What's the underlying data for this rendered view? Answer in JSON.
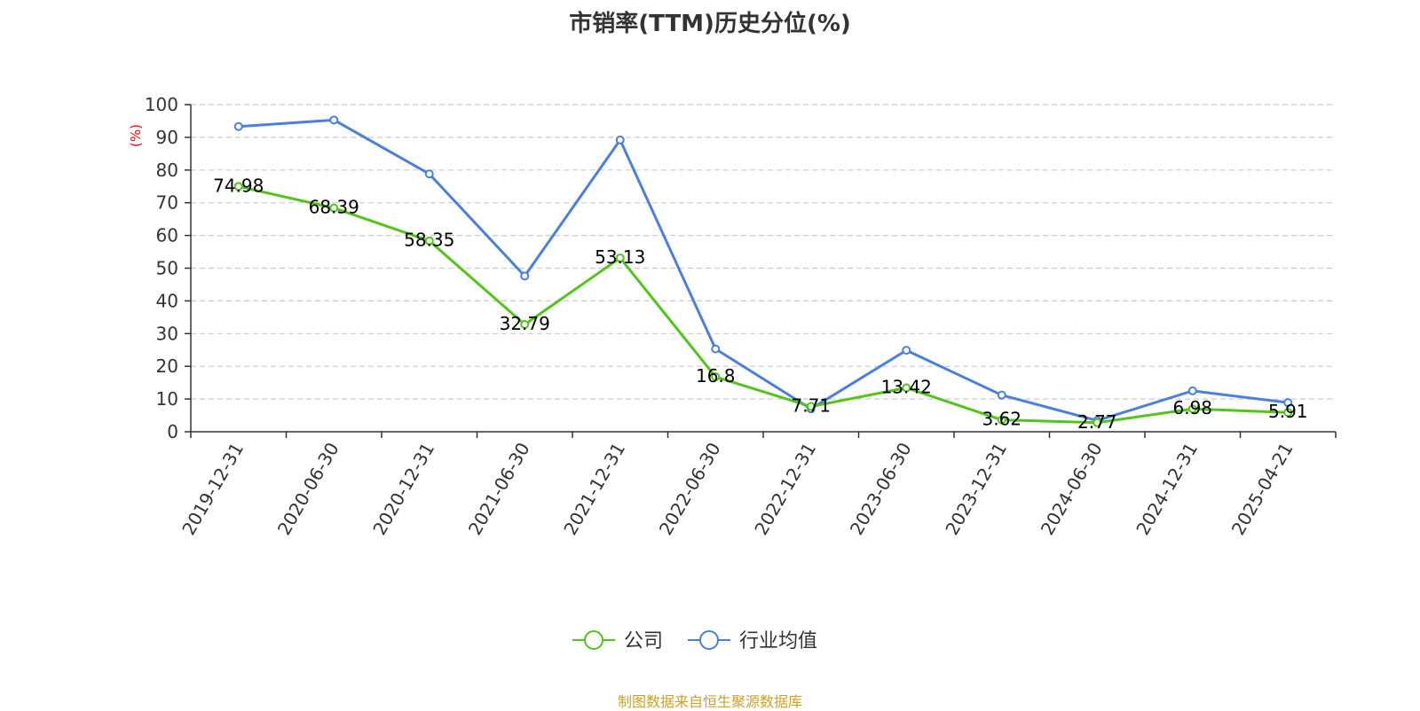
{
  "chart_data": {
    "type": "line",
    "title": "市销率(TTM)历史分位(%)",
    "ylabel": "(%)",
    "xlabel": "",
    "ylim": [
      0,
      100
    ],
    "yticks": [
      0,
      10,
      20,
      30,
      40,
      50,
      60,
      70,
      80,
      90,
      100
    ],
    "grid": true,
    "legend_position": "bottom-center",
    "categories": [
      "2019-12-31",
      "2020-06-30",
      "2020-12-31",
      "2021-06-30",
      "2021-12-31",
      "2022-06-30",
      "2022-12-31",
      "2023-06-30",
      "2023-12-31",
      "2024-06-30",
      "2024-12-31",
      "2025-04-21"
    ],
    "series": [
      {
        "name": "公司",
        "color": "#52c41a",
        "values": [
          74.98,
          68.39,
          58.35,
          32.79,
          53.13,
          16.8,
          7.71,
          13.42,
          3.62,
          2.77,
          6.98,
          5.91
        ],
        "labels": [
          "74.98",
          "68.39",
          "58.35",
          "32.79",
          "53.13",
          "16.8",
          "7.71",
          "13.42",
          "3.62",
          "2.77",
          "6.98",
          "5.91"
        ]
      },
      {
        "name": "行业均值",
        "color": "#4a7fdc",
        "values": [
          93.3,
          95.3,
          78.8,
          47.6,
          89.2,
          25.3,
          7.0,
          24.9,
          11.2,
          3.4,
          12.5,
          8.9
        ]
      }
    ]
  },
  "footer": {
    "source": "制图数据来自恒生聚源数据库"
  }
}
